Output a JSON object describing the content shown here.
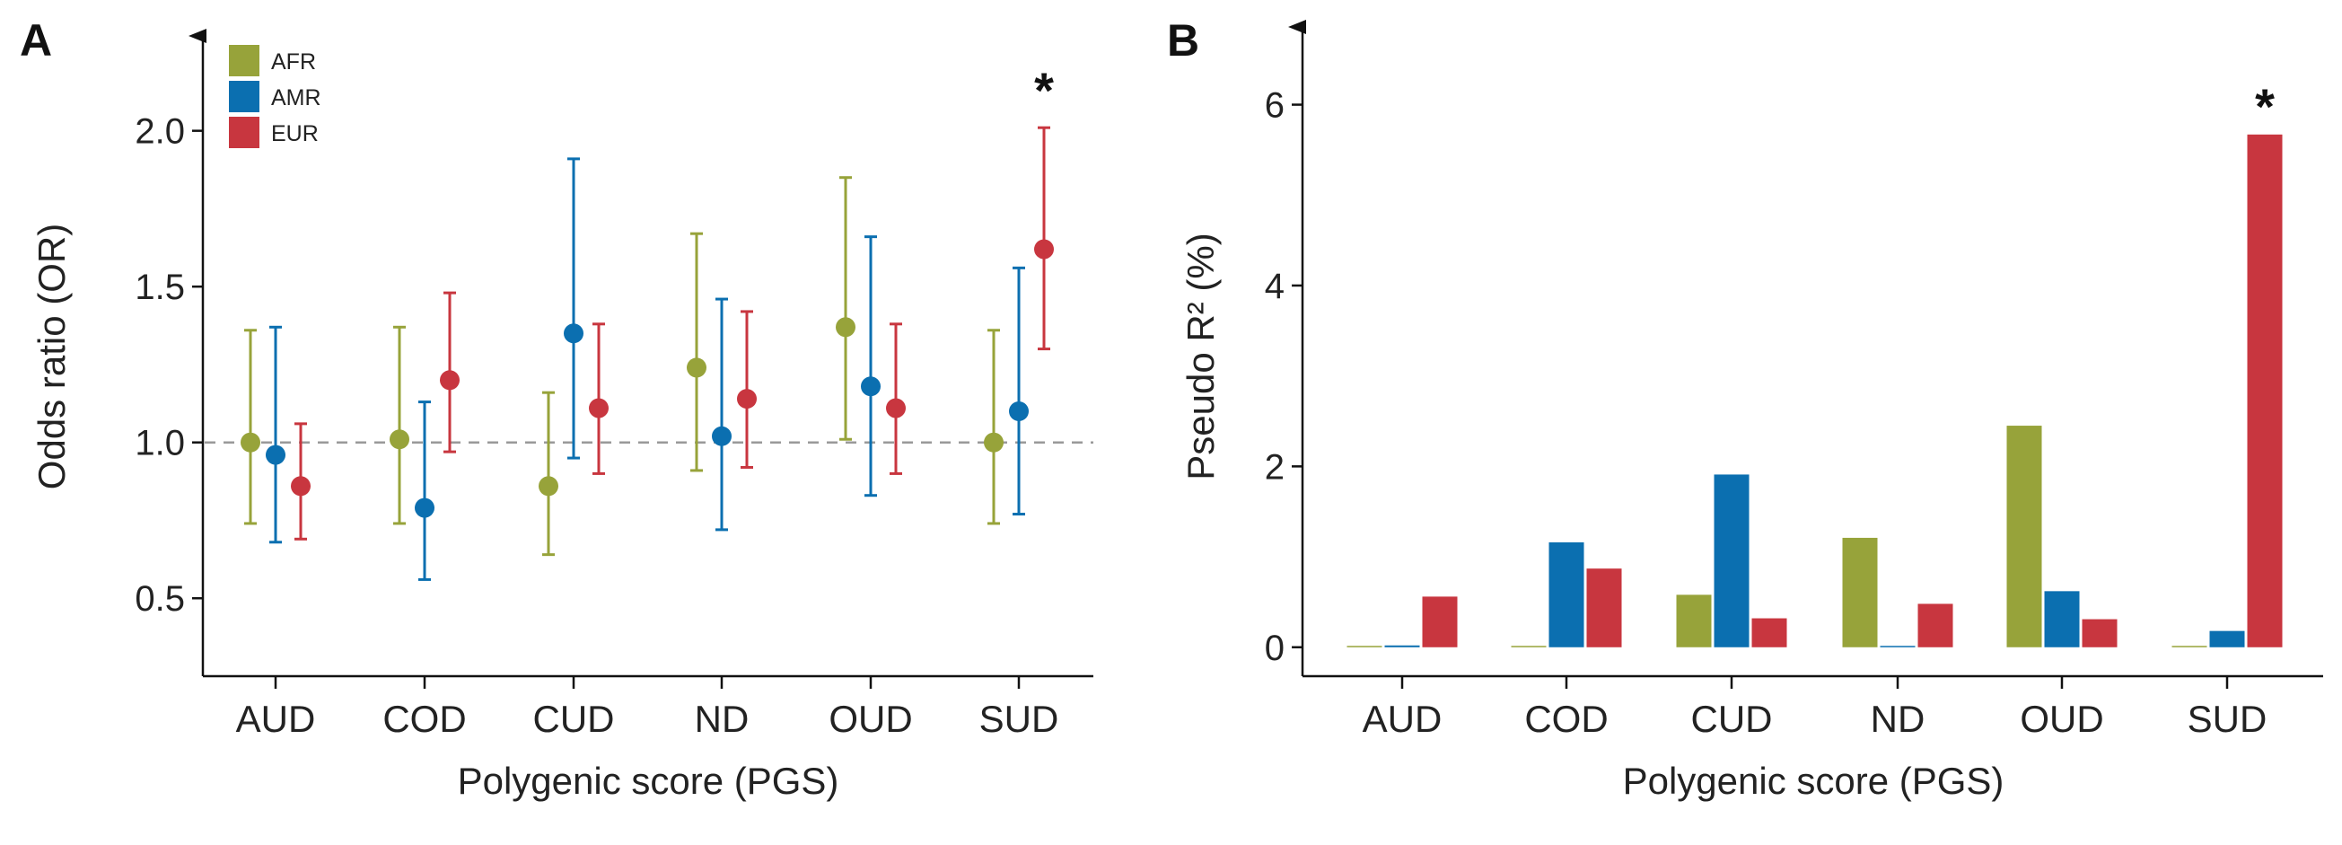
{
  "chart_data": [
    {
      "panel_label": "A",
      "type": "scatter",
      "subtype": "point-with-error-bars",
      "xlabel": "Polygenic score (PGS)",
      "ylabel": "Odds ratio (OR)",
      "categories": [
        "AUD",
        "COD",
        "CUD",
        "ND",
        "OUD",
        "SUD"
      ],
      "yticks": [
        "0.5",
        "1.0",
        "1.5",
        "2.0"
      ],
      "ytick_values": [
        0.5,
        1.0,
        1.5,
        2.0
      ],
      "ylim": [
        0.25,
        2.29
      ],
      "reference_line": 1.0,
      "legend_position": "top-left",
      "significance_marker": {
        "label": "*",
        "category": "SUD",
        "series": "EUR"
      },
      "series": [
        {
          "name": "AFR",
          "color": "#97a33a",
          "values": [
            1.0,
            1.01,
            0.86,
            1.24,
            1.37,
            1.0
          ],
          "lower": [
            0.74,
            0.74,
            0.64,
            0.91,
            1.01,
            0.74
          ],
          "upper": [
            1.36,
            1.37,
            1.16,
            1.67,
            1.85,
            1.36
          ]
        },
        {
          "name": "AMR",
          "color": "#0b6fb0",
          "values": [
            0.96,
            0.79,
            1.35,
            1.02,
            1.18,
            1.1
          ],
          "lower": [
            0.68,
            0.56,
            0.95,
            0.72,
            0.83,
            0.77
          ],
          "upper": [
            1.37,
            1.13,
            1.91,
            1.46,
            1.66,
            1.56
          ]
        },
        {
          "name": "EUR",
          "color": "#c8363f",
          "values": [
            0.86,
            1.2,
            1.11,
            1.14,
            1.11,
            1.62
          ],
          "lower": [
            0.69,
            0.97,
            0.9,
            0.92,
            0.9,
            1.3
          ],
          "upper": [
            1.06,
            1.48,
            1.38,
            1.42,
            1.38,
            2.01
          ]
        }
      ]
    },
    {
      "panel_label": "B",
      "type": "bar",
      "xlabel": "Polygenic score (PGS)",
      "ylabel": "Pseudo R² (%)",
      "categories": [
        "AUD",
        "COD",
        "CUD",
        "ND",
        "OUD",
        "SUD"
      ],
      "yticks": [
        "0",
        "2",
        "4",
        "6"
      ],
      "ytick_values": [
        0,
        2,
        4,
        6
      ],
      "ylim": [
        -0.32,
        6.8
      ],
      "significance_marker": {
        "label": "*",
        "category": "SUD",
        "series": "EUR"
      },
      "series": [
        {
          "name": "AFR",
          "color": "#97a33a",
          "values": [
            0.0,
            0.0,
            0.58,
            1.21,
            2.45,
            0.0
          ]
        },
        {
          "name": "AMR",
          "color": "#0b6fb0",
          "values": [
            0.02,
            1.16,
            1.91,
            0.01,
            0.62,
            0.18
          ]
        },
        {
          "name": "EUR",
          "color": "#c8363f",
          "values": [
            0.56,
            0.87,
            0.32,
            0.48,
            0.31,
            5.67
          ]
        }
      ]
    }
  ]
}
